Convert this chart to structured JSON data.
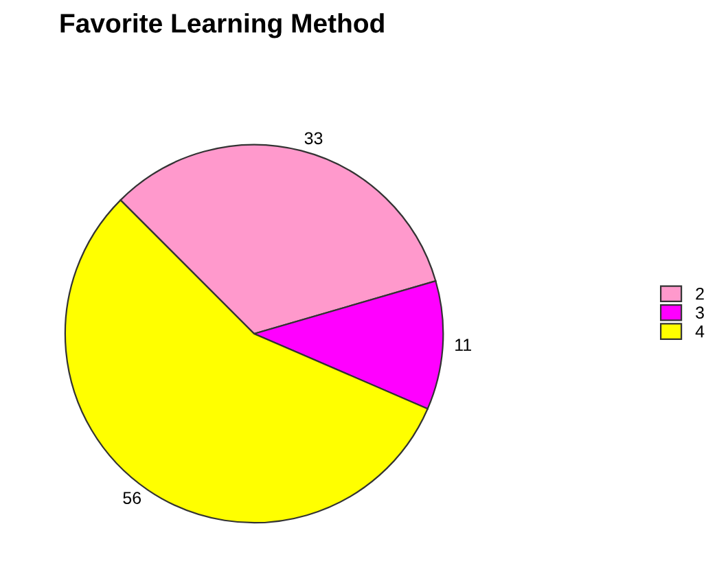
{
  "chart_data": {
    "type": "pie",
    "title": "Favorite Learning Method",
    "categories": [
      "2",
      "3",
      "4"
    ],
    "values": [
      33,
      11,
      56
    ],
    "colors": [
      "#ff99cc",
      "#ff00ff",
      "#ffff00"
    ],
    "data_labels": true,
    "legend": "right"
  }
}
